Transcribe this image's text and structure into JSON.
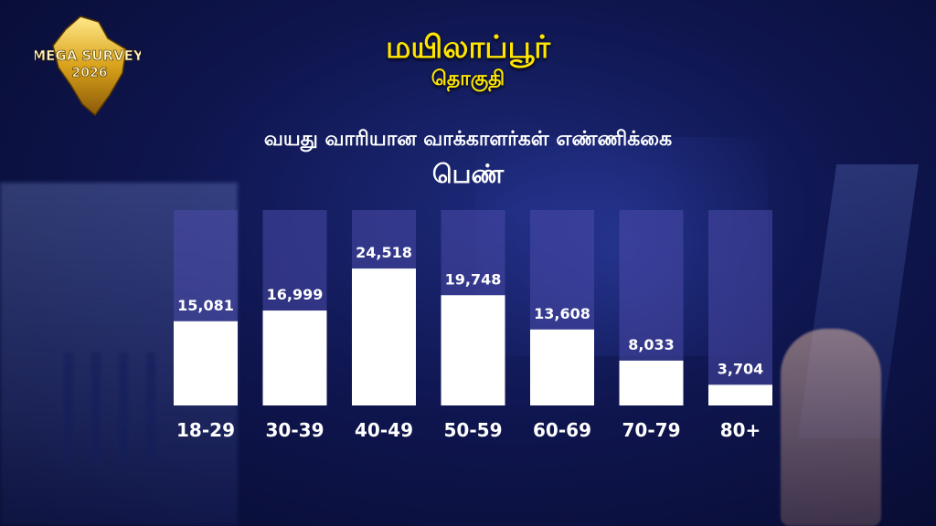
{
  "header": {
    "title": "மயிலாப்பூர்",
    "subtitle": "தொகுதி",
    "logo_text_line1": "MEGA SURVEY",
    "logo_text_line2": "2026"
  },
  "colors": {
    "title": "#ffe600",
    "bar_fill": "#ffffff",
    "bar_track": "#4a4aa8",
    "label": "#ffffff"
  },
  "chart_data": {
    "type": "bar",
    "title": "வயது வாரியான வாக்காளர்கள் எண்ணிக்கை",
    "subtitle": "பெண்",
    "categories": [
      "18-29",
      "30-39",
      "40-49",
      "50-59",
      "60-69",
      "70-79",
      "80+"
    ],
    "values": [
      15081,
      16999,
      24518,
      19748,
      13608,
      8033,
      3704
    ],
    "value_labels": [
      "15,081",
      "16,999",
      "24,518",
      "19,748",
      "13,608",
      "8,033",
      "3,704"
    ],
    "ylim": [
      0,
      35000
    ],
    "grid": false,
    "legend": "none"
  }
}
